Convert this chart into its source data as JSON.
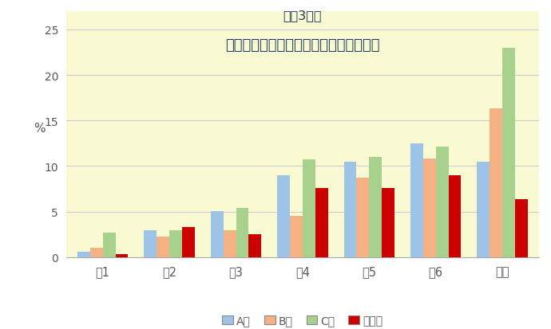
{
  "title_line1": "令和3年度",
  "title_line2": "近隣の市と大府市の虫歯がある子の割合",
  "categories": [
    "小1",
    "小2",
    "小3",
    "小4",
    "小5",
    "小6",
    "中１"
  ],
  "series": {
    "A市": [
      0.6,
      3.0,
      5.1,
      9.0,
      10.5,
      12.5,
      10.5
    ],
    "B市": [
      1.0,
      2.3,
      3.0,
      4.5,
      8.7,
      10.8,
      16.3
    ],
    "C市": [
      2.7,
      3.0,
      5.4,
      10.7,
      11.0,
      12.1,
      23.0
    ],
    "大府市": [
      0.3,
      3.3,
      2.5,
      7.6,
      7.6,
      9.0,
      6.4
    ]
  },
  "colors": {
    "A市": "#9DC3E6",
    "B市": "#F4B183",
    "C市": "#A9D18E",
    "大府市": "#CC0000"
  },
  "ylim": [
    0,
    27
  ],
  "yticks": [
    0,
    5,
    10,
    15,
    20,
    25
  ],
  "ylabel": "%",
  "background_color": "#FFFFFF",
  "plot_bg_color": "#FAFAD2",
  "grid_color": "#CCCCCC",
  "title_color": "#1F3864",
  "tick_color": "#595959"
}
